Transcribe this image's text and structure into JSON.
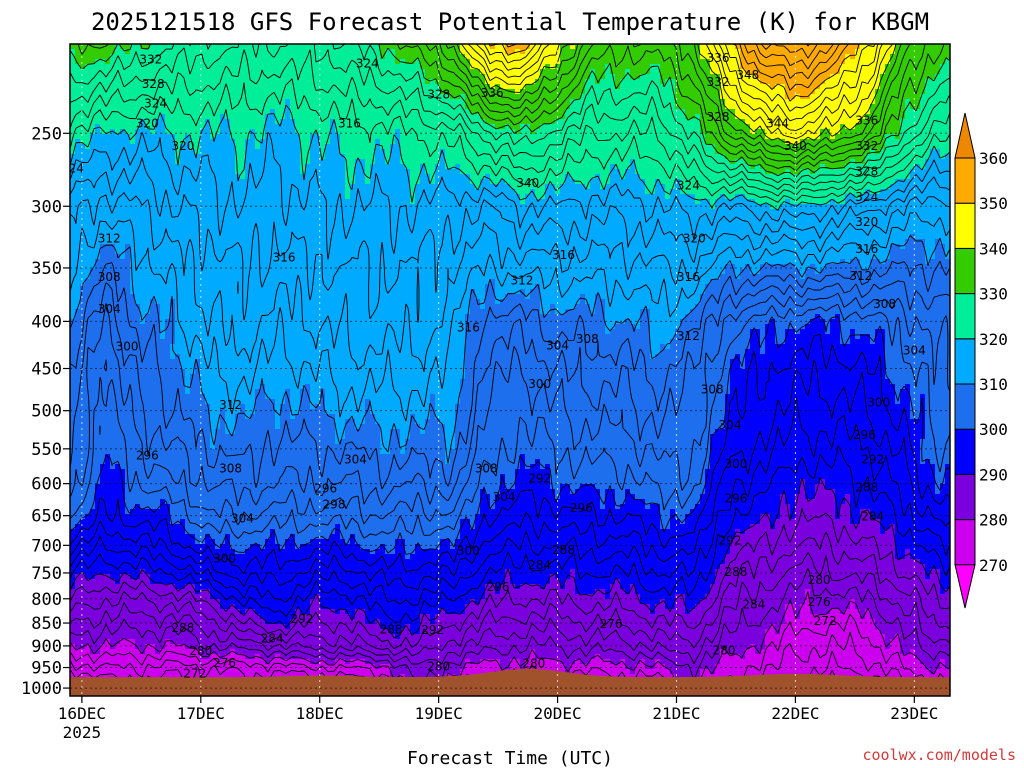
{
  "chart_data": {
    "type": "heatmap",
    "title": "2025121518 GFS Forecast Potential Temperature (K) for KBGM",
    "xlabel": "Forecast Time (UTC)",
    "ylabel": "",
    "x_ticks": [
      {
        "label": "16DEC",
        "sublabel": "2025",
        "day": 0
      },
      {
        "label": "17DEC",
        "sublabel": "",
        "day": 1
      },
      {
        "label": "18DEC",
        "sublabel": "",
        "day": 2
      },
      {
        "label": "19DEC",
        "sublabel": "",
        "day": 3
      },
      {
        "label": "20DEC",
        "sublabel": "",
        "day": 4
      },
      {
        "label": "21DEC",
        "sublabel": "",
        "day": 5
      },
      {
        "label": "22DEC",
        "sublabel": "",
        "day": 6
      },
      {
        "label": "23DEC",
        "sublabel": "",
        "day": 7
      }
    ],
    "xlim_days": [
      -0.1,
      7.3
    ],
    "y_ticks": [
      250,
      300,
      350,
      400,
      450,
      500,
      550,
      600,
      650,
      700,
      750,
      800,
      850,
      900,
      950,
      1000
    ],
    "ylim_hpa": [
      200,
      1020
    ],
    "y_scale": "log-pressure",
    "grid": "dotted",
    "colorbar": {
      "levels": [
        270,
        280,
        290,
        300,
        310,
        320,
        330,
        340,
        350,
        360
      ],
      "colors": [
        "#ff00ff",
        "#cc00ee",
        "#7a00dd",
        "#0000ff",
        "#1e6fee",
        "#00aaff",
        "#00ee99",
        "#33cc00",
        "#ffff00",
        "#ffaa00",
        "#ee8800"
      ],
      "placement": "right"
    },
    "contour_interval_k": 2,
    "contour_labels": [
      {
        "v": "332",
        "d": 0.58,
        "p": 208
      },
      {
        "v": "328",
        "d": 0.6,
        "p": 221
      },
      {
        "v": "324",
        "d": 0.62,
        "p": 232
      },
      {
        "v": "324",
        "d": 2.4,
        "p": 210
      },
      {
        "v": "320",
        "d": 0.85,
        "p": 258
      },
      {
        "v": "320",
        "d": 0.55,
        "p": 244
      },
      {
        "v": "324",
        "d": -0.08,
        "p": 273
      },
      {
        "v": "316",
        "d": 2.25,
        "p": 244
      },
      {
        "v": "328",
        "d": 3.0,
        "p": 227
      },
      {
        "v": "336",
        "d": 3.45,
        "p": 226
      },
      {
        "v": "340",
        "d": 3.75,
        "p": 283
      },
      {
        "v": "316",
        "d": 4.05,
        "p": 339
      },
      {
        "v": "312",
        "d": 3.7,
        "p": 361
      },
      {
        "v": "312",
        "d": 0.23,
        "p": 325
      },
      {
        "v": "308",
        "d": 0.23,
        "p": 358
      },
      {
        "v": "304",
        "d": 0.23,
        "p": 388
      },
      {
        "v": "300",
        "d": 0.38,
        "p": 426
      },
      {
        "v": "316",
        "d": 1.7,
        "p": 341
      },
      {
        "v": "316",
        "d": 3.25,
        "p": 406
      },
      {
        "v": "312",
        "d": 1.25,
        "p": 493
      },
      {
        "v": "308",
        "d": 1.25,
        "p": 578
      },
      {
        "v": "304",
        "d": 1.35,
        "p": 655
      },
      {
        "v": "300",
        "d": 1.2,
        "p": 723
      },
      {
        "v": "296",
        "d": 0.55,
        "p": 559
      },
      {
        "v": "296",
        "d": 2.05,
        "p": 607
      },
      {
        "v": "298",
        "d": 2.12,
        "p": 632
      },
      {
        "v": "304",
        "d": 2.3,
        "p": 565
      },
      {
        "v": "308",
        "d": 3.4,
        "p": 578
      },
      {
        "v": "304",
        "d": 3.55,
        "p": 620
      },
      {
        "v": "300",
        "d": 3.25,
        "p": 710
      },
      {
        "v": "296",
        "d": 3.5,
        "p": 777
      },
      {
        "v": "292",
        "d": 1.85,
        "p": 841
      },
      {
        "v": "288",
        "d": 0.85,
        "p": 861
      },
      {
        "v": "284",
        "d": 1.6,
        "p": 884
      },
      {
        "v": "280",
        "d": 1.0,
        "p": 912
      },
      {
        "v": "276",
        "d": 1.2,
        "p": 939
      },
      {
        "v": "272",
        "d": 0.95,
        "p": 964
      },
      {
        "v": "288",
        "d": 2.6,
        "p": 864
      },
      {
        "v": "292",
        "d": 2.95,
        "p": 865
      },
      {
        "v": "280",
        "d": 3.0,
        "p": 948
      },
      {
        "v": "280",
        "d": 3.8,
        "p": 940
      },
      {
        "v": "304",
        "d": 4.0,
        "p": 425
      },
      {
        "v": "308",
        "d": 4.25,
        "p": 418
      },
      {
        "v": "300",
        "d": 3.85,
        "p": 468
      },
      {
        "v": "292",
        "d": 3.85,
        "p": 592
      },
      {
        "v": "296",
        "d": 4.2,
        "p": 638
      },
      {
        "v": "288",
        "d": 4.05,
        "p": 708
      },
      {
        "v": "284",
        "d": 3.85,
        "p": 735
      },
      {
        "v": "276",
        "d": 4.45,
        "p": 852
      },
      {
        "v": "324",
        "d": 5.1,
        "p": 285
      },
      {
        "v": "320",
        "d": 5.15,
        "p": 325
      },
      {
        "v": "316",
        "d": 5.1,
        "p": 358
      },
      {
        "v": "312",
        "d": 5.1,
        "p": 415
      },
      {
        "v": "308",
        "d": 5.3,
        "p": 474
      },
      {
        "v": "304",
        "d": 5.45,
        "p": 518
      },
      {
        "v": "300",
        "d": 5.5,
        "p": 571
      },
      {
        "v": "296",
        "d": 5.5,
        "p": 623
      },
      {
        "v": "292",
        "d": 5.45,
        "p": 692
      },
      {
        "v": "288",
        "d": 5.5,
        "p": 748
      },
      {
        "v": "284",
        "d": 5.65,
        "p": 812
      },
      {
        "v": "280",
        "d": 5.4,
        "p": 910
      },
      {
        "v": "336",
        "d": 5.35,
        "p": 207
      },
      {
        "v": "332",
        "d": 5.35,
        "p": 220
      },
      {
        "v": "348",
        "d": 5.6,
        "p": 216
      },
      {
        "v": "328",
        "d": 5.35,
        "p": 240
      },
      {
        "v": "344",
        "d": 5.85,
        "p": 244
      },
      {
        "v": "340",
        "d": 6.0,
        "p": 258
      },
      {
        "v": "336",
        "d": 6.6,
        "p": 242
      },
      {
        "v": "332",
        "d": 6.6,
        "p": 258
      },
      {
        "v": "328",
        "d": 6.6,
        "p": 275
      },
      {
        "v": "324",
        "d": 6.6,
        "p": 293
      },
      {
        "v": "320",
        "d": 6.6,
        "p": 312
      },
      {
        "v": "316",
        "d": 6.6,
        "p": 334
      },
      {
        "v": "312",
        "d": 6.55,
        "p": 357
      },
      {
        "v": "308",
        "d": 6.75,
        "p": 383
      },
      {
        "v": "304",
        "d": 7.0,
        "p": 430
      },
      {
        "v": "300",
        "d": 6.7,
        "p": 490
      },
      {
        "v": "296",
        "d": 6.58,
        "p": 531
      },
      {
        "v": "292",
        "d": 6.65,
        "p": 565
      },
      {
        "v": "288",
        "d": 6.6,
        "p": 606
      },
      {
        "v": "284",
        "d": 6.65,
        "p": 651
      },
      {
        "v": "280",
        "d": 6.2,
        "p": 763
      },
      {
        "v": "276",
        "d": 6.2,
        "p": 806
      },
      {
        "v": "272",
        "d": 6.25,
        "p": 846
      }
    ],
    "terrain_color": "#a0522d"
  },
  "credit": "coolwx.com/models"
}
